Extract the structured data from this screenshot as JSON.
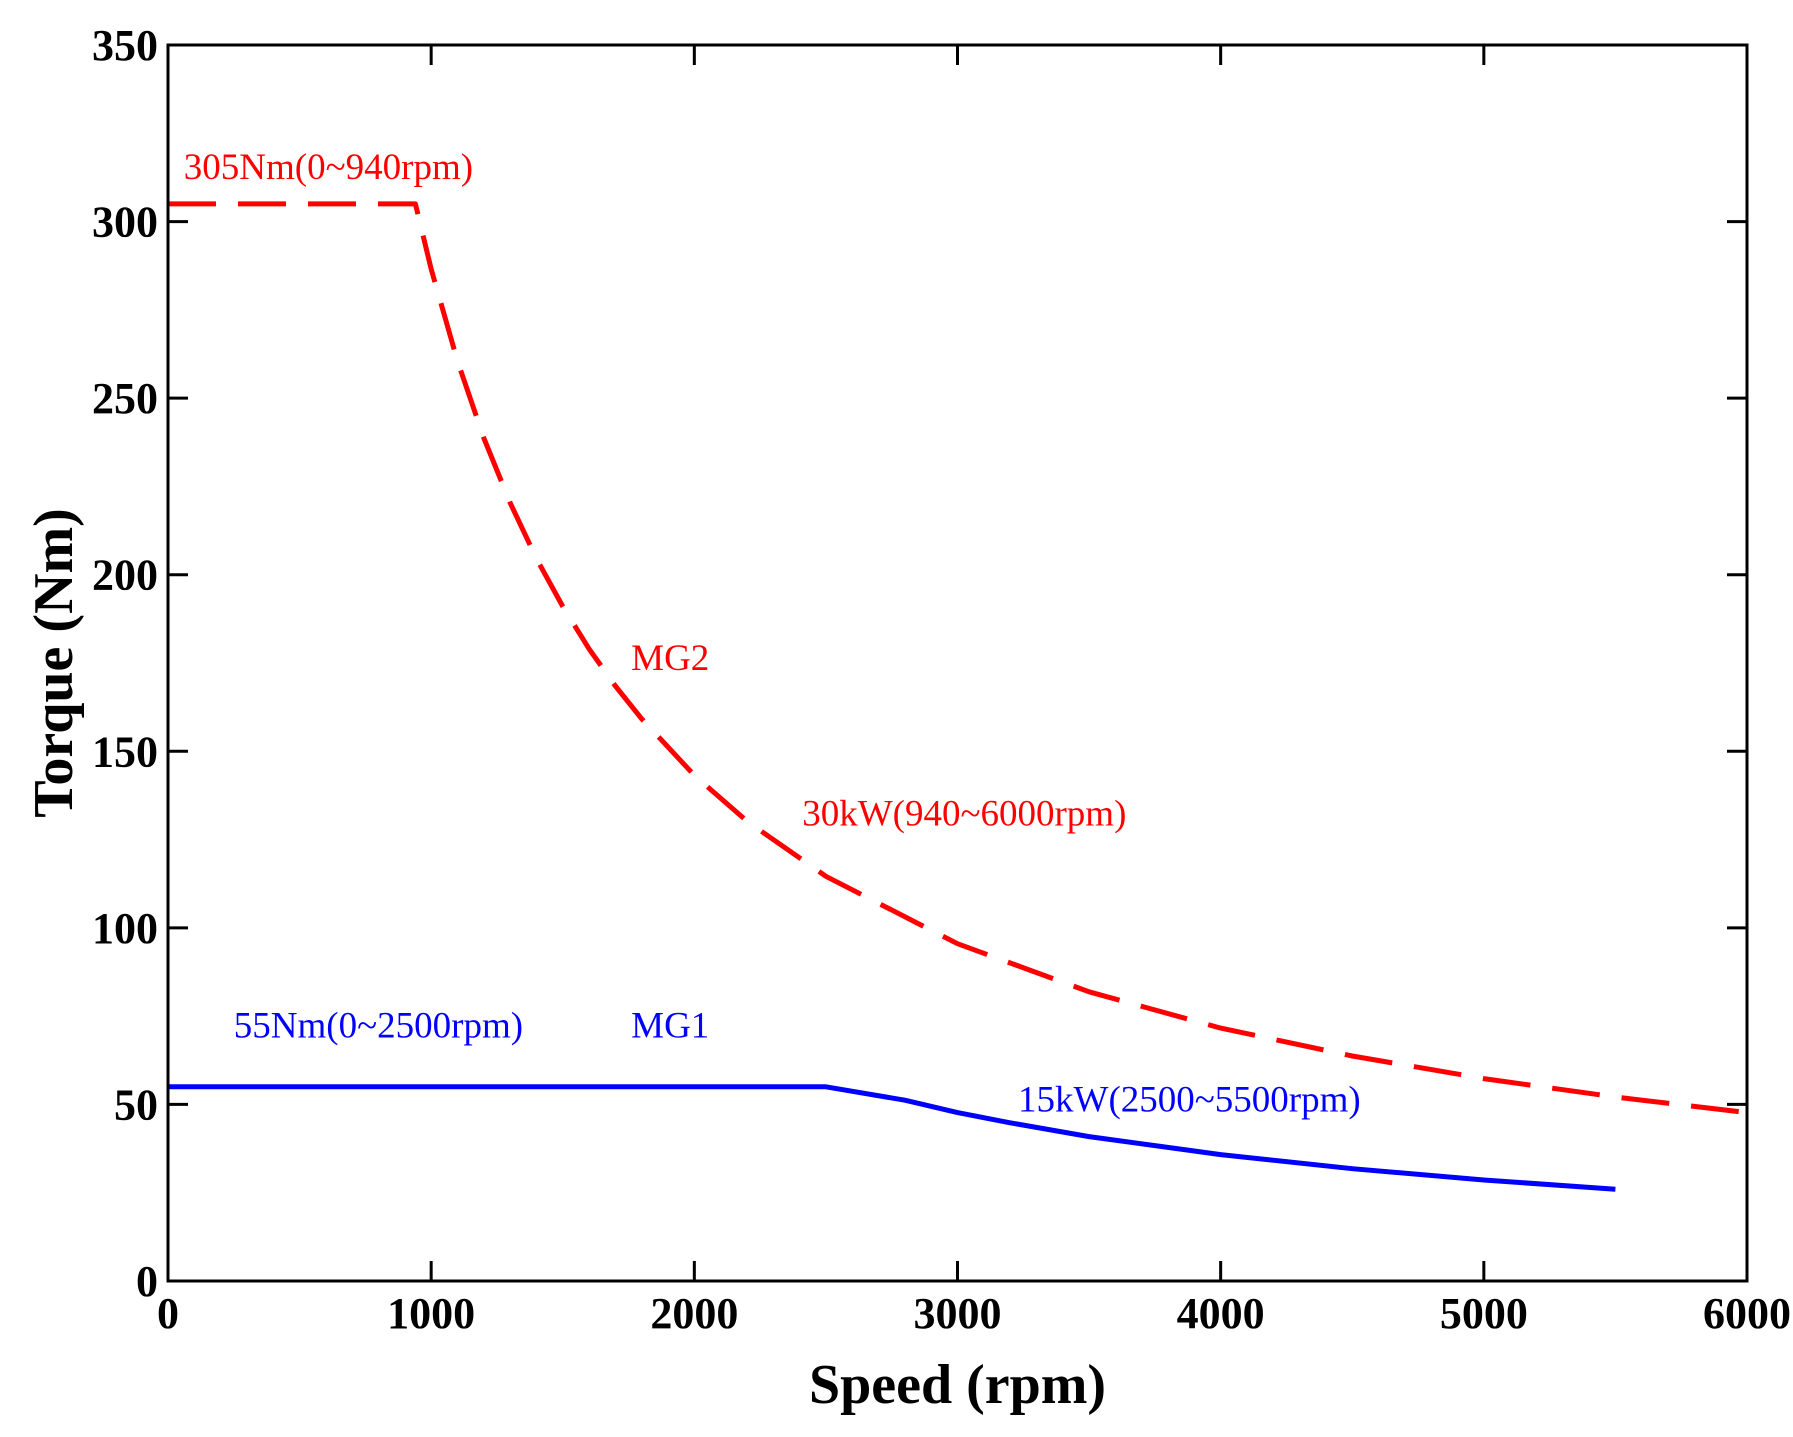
{
  "chart_data": {
    "type": "line",
    "title": "",
    "xlabel": "Speed (rpm)",
    "ylabel": "Torque (Nm)",
    "xlim": [
      0,
      6000
    ],
    "ylim": [
      0,
      350
    ],
    "xticks": [
      0,
      1000,
      2000,
      3000,
      4000,
      5000,
      6000
    ],
    "yticks": [
      0,
      50,
      100,
      150,
      200,
      250,
      300,
      350
    ],
    "grid": false,
    "series": [
      {
        "name": "MG2",
        "color": "#ff0000",
        "style": "dashed",
        "x": [
          0,
          940,
          1000,
          1100,
          1200,
          1300,
          1400,
          1500,
          1600,
          1700,
          1800,
          2000,
          2200,
          2500,
          3000,
          3500,
          4000,
          4500,
          5000,
          5500,
          6000
        ],
        "y": [
          305,
          305,
          286.5,
          260.5,
          238.7,
          220.4,
          204.6,
          191.0,
          179.0,
          168.5,
          159.2,
          143.2,
          130.2,
          114.6,
          95.5,
          81.9,
          71.6,
          63.7,
          57.3,
          52.1,
          47.7
        ]
      },
      {
        "name": "MG1",
        "color": "#0000ff",
        "style": "solid",
        "x": [
          0,
          2500,
          2800,
          3000,
          3200,
          3500,
          4000,
          4500,
          5000,
          5500
        ],
        "y": [
          55,
          55,
          51.2,
          47.7,
          44.8,
          40.9,
          35.8,
          31.8,
          28.6,
          26.0
        ]
      }
    ],
    "annotations": [
      {
        "text": "305Nm(0~940rpm)",
        "x": 60,
        "y": 312,
        "color": "#ff0000"
      },
      {
        "text": "MG2",
        "x": 1760,
        "y": 173,
        "color": "#ff0000"
      },
      {
        "text": "30kW(940~6000rpm)",
        "x": 2410,
        "y": 129,
        "color": "#ff0000"
      },
      {
        "text": "55Nm(0~2500rpm)",
        "x": 250,
        "y": 69,
        "color": "#0000ff"
      },
      {
        "text": "MG1",
        "x": 1760,
        "y": 69,
        "color": "#0000ff"
      },
      {
        "text": "15kW(2500~5500rpm)",
        "x": 3230,
        "y": 48,
        "color": "#0000ff"
      }
    ]
  }
}
